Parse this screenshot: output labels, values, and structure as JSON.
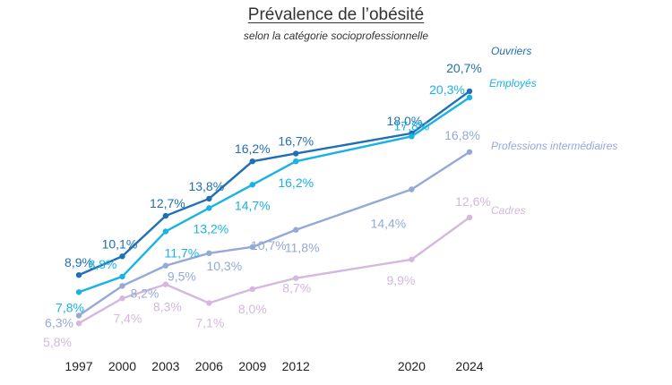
{
  "chart_data": {
    "type": "line",
    "title": "Prévalence de l’obésité",
    "subtitle": "selon la catégorie socioprofessionnelle",
    "categories": [
      "1997",
      "2000",
      "2003",
      "2006",
      "2009",
      "2012",
      "2020",
      "2024"
    ],
    "x": [
      1997,
      2000,
      2003,
      2006,
      2009,
      2012,
      2020,
      2024
    ],
    "xlim": [
      1997,
      2024
    ],
    "ylim": [
      5.0,
      21.5
    ],
    "grid": false,
    "legend": "none",
    "series": [
      {
        "name": "Ouvriers",
        "color": "#1f6fb5",
        "values": [
          8.9,
          10.1,
          12.7,
          13.8,
          16.2,
          16.7,
          18.0,
          20.7
        ],
        "labels": [
          "8,9%",
          "10,1%",
          "12,7%",
          "13,8%",
          "16,2%",
          "16,7%",
          "18,0%",
          "20,7%"
        ]
      },
      {
        "name": "Employés",
        "color": "#19b2e6",
        "values": [
          7.8,
          8.8,
          11.7,
          13.2,
          14.7,
          16.2,
          17.8,
          20.3
        ],
        "labels": [
          "7,8%",
          "8,8%",
          "11,7%",
          "13,2%",
          "14,7%",
          "16,2%",
          "17,8%",
          "20,3%"
        ]
      },
      {
        "name": "Professions intermédiaires",
        "color": "#94a9d8",
        "values": [
          6.3,
          8.2,
          9.5,
          10.3,
          10.7,
          11.8,
          14.4,
          16.8
        ],
        "labels": [
          "6,3%",
          "8,2%",
          "9,5%",
          "10,3%",
          "10,7%",
          "11,8%",
          "14,4%",
          "16,8%"
        ]
      },
      {
        "name": "Cadres",
        "color": "#d5b8dd",
        "values": [
          5.8,
          7.4,
          8.3,
          7.1,
          8.0,
          8.7,
          9.9,
          12.6
        ],
        "labels": [
          "5,8%",
          "7,4%",
          "8,3%",
          "7,1%",
          "8,0%",
          "8,7%",
          "9,9%",
          "12,6%"
        ]
      }
    ]
  }
}
